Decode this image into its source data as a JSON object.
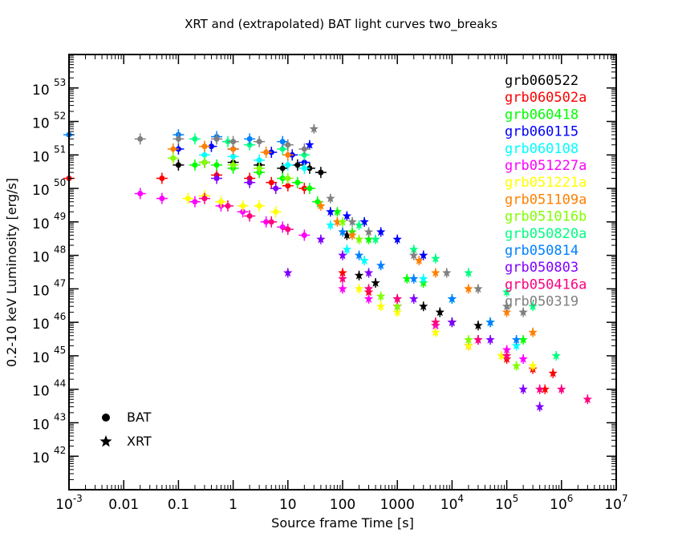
{
  "chart_data": {
    "type": "scatter",
    "title": "XRT and (extrapolated) BAT light curves two_breaks",
    "xlabel": "Source frame Time [s]",
    "ylabel": "0.2-10 keV Luminosity [erg/s]",
    "xscale": "log",
    "yscale": "log",
    "xlim": [
      0.001,
      10000000
    ],
    "ylim": [
      1e+41,
      1e+54
    ],
    "x_ticks": [
      {
        "value": 0.001,
        "base": "10",
        "exp": "-3"
      },
      {
        "value": 0.01,
        "base": "0.01",
        "exp": ""
      },
      {
        "value": 0.1,
        "base": "0.1",
        "exp": ""
      },
      {
        "value": 1,
        "base": "1",
        "exp": ""
      },
      {
        "value": 10,
        "base": "10",
        "exp": ""
      },
      {
        "value": 100,
        "base": "100",
        "exp": ""
      },
      {
        "value": 1000,
        "base": "1000",
        "exp": ""
      },
      {
        "value": 10000,
        "base": "10",
        "exp": "4"
      },
      {
        "value": 100000,
        "base": "10",
        "exp": "5"
      },
      {
        "value": 1000000,
        "base": "10",
        "exp": "6"
      },
      {
        "value": 10000000,
        "base": "10",
        "exp": "7"
      }
    ],
    "y_ticks": [
      {
        "value": 42,
        "base": "10",
        "exp": "42"
      },
      {
        "value": 43,
        "base": "10",
        "exp": "43"
      },
      {
        "value": 44,
        "base": "10",
        "exp": "44"
      },
      {
        "value": 45,
        "base": "10",
        "exp": "45"
      },
      {
        "value": 46,
        "base": "10",
        "exp": "46"
      },
      {
        "value": 47,
        "base": "10",
        "exp": "47"
      },
      {
        "value": 48,
        "base": "10",
        "exp": "48"
      },
      {
        "value": 49,
        "base": "10",
        "exp": "49"
      },
      {
        "value": 50,
        "base": "10",
        "exp": "50"
      },
      {
        "value": 51,
        "base": "10",
        "exp": "51"
      },
      {
        "value": 52,
        "base": "10",
        "exp": "52"
      },
      {
        "value": 53,
        "base": "10",
        "exp": "53"
      }
    ],
    "legend_placement": "top-right",
    "symbols": [
      {
        "marker": "circle",
        "label": "BAT"
      },
      {
        "marker": "star",
        "label": "XRT"
      }
    ],
    "series": [
      {
        "name": "grb060522",
        "color": "#000000",
        "bat": [
          [
            0.1,
            5e+50
          ],
          [
            0.3,
            6e+50
          ],
          [
            1,
            6e+50
          ],
          [
            3,
            5e+50
          ],
          [
            8,
            4e+50
          ],
          [
            15,
            5e+50
          ],
          [
            25,
            4e+50
          ],
          [
            40,
            3e+50
          ]
        ],
        "xrt": [
          [
            120,
            4e+48
          ],
          [
            200,
            2.5e+47
          ],
          [
            400,
            1.5e+47
          ],
          [
            1000,
            5e+46
          ],
          [
            3000,
            3e+46
          ],
          [
            6000,
            2e+46
          ],
          [
            10000,
            1e+46
          ],
          [
            30000,
            8e+45
          ]
        ]
      },
      {
        "name": "grb060502a",
        "color": "#ff0000",
        "bat": [
          [
            0.001,
            2e+50
          ],
          [
            0.05,
            2e+50
          ],
          [
            0.5,
            2.5e+50
          ],
          [
            2,
            2e+50
          ],
          [
            5,
            1.5e+50
          ],
          [
            10,
            1.2e+50
          ],
          [
            20,
            1e+50
          ]
        ],
        "xrt": [
          [
            100,
            3e+47
          ],
          [
            300,
            8e+46
          ],
          [
            1000,
            3e+46
          ],
          [
            5000,
            8e+45
          ],
          [
            20000,
            2e+45
          ],
          [
            100000,
            8e+44
          ],
          [
            300000,
            4e+44
          ],
          [
            500000,
            1e+44
          ],
          [
            700000,
            3e+44
          ]
        ]
      },
      {
        "name": "grb060418",
        "color": "#00ff00",
        "bat": [
          [
            0.2,
            5e+50
          ],
          [
            0.5,
            5e+50
          ],
          [
            1,
            4e+50
          ],
          [
            3,
            3e+50
          ],
          [
            8,
            2e+50
          ],
          [
            15,
            1.5e+50
          ],
          [
            25,
            1e+50
          ],
          [
            35,
            4e+49
          ]
        ],
        "xrt": [
          [
            80,
            2e+49
          ],
          [
            150,
            5e+48
          ],
          [
            300,
            3e+48
          ],
          [
            1500,
            2e+47
          ],
          [
            3000,
            1.5e+47
          ],
          [
            10000,
            5e+46
          ],
          [
            50000,
            1e+46
          ],
          [
            200000,
            3e+45
          ]
        ]
      },
      {
        "name": "grb060115",
        "color": "#0000ff",
        "bat": [
          [
            0.1,
            1.5e+51
          ],
          [
            0.4,
            1.8e+51
          ],
          [
            1,
            1.5e+51
          ],
          [
            5,
            1.2e+51
          ],
          [
            12,
            1e+51
          ],
          [
            20,
            6e+50
          ]
        ],
        "xrt": [
          [
            25,
            2e+51
          ],
          [
            60,
            2e+49
          ],
          [
            120,
            1.5e+49
          ],
          [
            250,
            1e+49
          ],
          [
            500,
            5e+48
          ],
          [
            1000,
            3e+48
          ],
          [
            3000,
            1e+48
          ]
        ]
      },
      {
        "name": "grb060108",
        "color": "#00ffff",
        "bat": [
          [
            0.3,
            1e+51
          ],
          [
            1,
            9e+50
          ],
          [
            3,
            7e+50
          ],
          [
            10,
            5e+50
          ],
          [
            20,
            4e+50
          ]
        ],
        "xrt": [
          [
            60,
            8e+48
          ],
          [
            120,
            1.5e+48
          ],
          [
            250,
            7e+47
          ],
          [
            3000,
            2e+47
          ],
          [
            10000,
            5e+46
          ],
          [
            50000,
            1e+46
          ],
          [
            150000,
            2e+45
          ]
        ]
      },
      {
        "name": "grb051227a",
        "color": "#ff00ff",
        "bat": [
          [
            0.02,
            7e+49
          ],
          [
            0.05,
            5e+49
          ],
          [
            0.2,
            4e+49
          ],
          [
            0.6,
            3e+49
          ],
          [
            1.5,
            2e+49
          ],
          [
            4,
            1e+49
          ],
          [
            8,
            7e+48
          ],
          [
            20,
            4e+48
          ]
        ],
        "xrt": [
          [
            100,
            1e+47
          ],
          [
            300,
            5e+46
          ],
          [
            1000,
            3e+46
          ],
          [
            5000,
            8e+45
          ],
          [
            30000,
            3e+45
          ],
          [
            100000,
            1.5e+45
          ],
          [
            200000,
            8e+44
          ]
        ]
      },
      {
        "name": "grb051221a",
        "color": "#ffff00",
        "bat": [
          [
            0.15,
            5e+49
          ],
          [
            0.3,
            6e+49
          ],
          [
            0.6,
            4e+49
          ],
          [
            1.5,
            3e+49
          ],
          [
            3,
            3e+49
          ],
          [
            6,
            2e+49
          ]
        ],
        "xrt": [
          [
            200,
            1e+47
          ],
          [
            500,
            3e+46
          ],
          [
            1000,
            2e+46
          ],
          [
            5000,
            5e+45
          ],
          [
            20000,
            2e+45
          ],
          [
            80000,
            1e+45
          ],
          [
            300000,
            5e+44
          ]
        ]
      },
      {
        "name": "grb051109a",
        "color": "#ff8000",
        "bat": [
          [
            0.08,
            1.5e+51
          ],
          [
            0.3,
            1.8e+51
          ],
          [
            1,
            1.5e+51
          ],
          [
            4,
            1.2e+51
          ],
          [
            10,
            1e+51
          ]
        ],
        "xrt": [
          [
            40,
            3e+49
          ],
          [
            80,
            1e+49
          ],
          [
            150,
            4e+48
          ],
          [
            2500,
            7e+47
          ],
          [
            5000,
            3e+47
          ],
          [
            20000,
            1e+47
          ],
          [
            100000,
            2e+46
          ],
          [
            300000,
            5e+45
          ]
        ]
      },
      {
        "name": "grb051016b",
        "color": "#80ff00",
        "bat": [
          [
            0.08,
            8e+50
          ],
          [
            0.3,
            6e+50
          ],
          [
            1,
            5e+50
          ],
          [
            3,
            4e+50
          ],
          [
            10,
            2e+50
          ]
        ],
        "xrt": [
          [
            100,
            1e+49
          ],
          [
            200,
            3e+48
          ],
          [
            500,
            6e+46
          ],
          [
            1000,
            3e+46
          ],
          [
            5000,
            1e+46
          ],
          [
            20000,
            3e+45
          ],
          [
            100000,
            1e+45
          ],
          [
            150000,
            5e+44
          ]
        ]
      },
      {
        "name": "grb050820a",
        "color": "#00ff80",
        "bat": [
          [
            0.2,
            3e+51
          ],
          [
            0.8,
            2.5e+51
          ],
          [
            2,
            2e+51
          ],
          [
            8,
            1.5e+51
          ],
          [
            20,
            1e+51
          ]
        ],
        "xrt": [
          [
            200,
            8e+48
          ],
          [
            400,
            3e+48
          ],
          [
            2000,
            1.5e+48
          ],
          [
            5000,
            8e+47
          ],
          [
            20000,
            3e+47
          ],
          [
            100000,
            8e+46
          ],
          [
            300000,
            3e+46
          ],
          [
            800000,
            1e+45
          ]
        ]
      },
      {
        "name": "grb050814",
        "color": "#0080ff",
        "bat": [
          [
            0.001,
            4e+51
          ],
          [
            0.1,
            4e+51
          ],
          [
            0.5,
            3.5e+51
          ],
          [
            2,
            3e+51
          ],
          [
            8,
            2.5e+51
          ]
        ],
        "xrt": [
          [
            100,
            5e+48
          ],
          [
            200,
            1e+48
          ],
          [
            500,
            5e+47
          ],
          [
            2000,
            2e+47
          ],
          [
            10000,
            5e+46
          ],
          [
            50000,
            1e+46
          ],
          [
            150000,
            3e+45
          ]
        ]
      },
      {
        "name": "grb050803",
        "color": "#8000ff",
        "bat": [
          [
            0.5,
            2e+50
          ],
          [
            2,
            1.5e+50
          ],
          [
            6,
            1e+50
          ]
        ],
        "xrt": [
          [
            10,
            3e+47
          ],
          [
            40,
            3e+48
          ],
          [
            100,
            1e+48
          ],
          [
            300,
            3e+47
          ],
          [
            2000,
            5e+46
          ],
          [
            10000,
            1e+46
          ],
          [
            50000,
            3e+45
          ],
          [
            200000,
            1e+44
          ],
          [
            400000,
            3e+43
          ]
        ]
      },
      {
        "name": "grb050416a",
        "color": "#ff0080",
        "bat": [
          [
            0.3,
            5e+49
          ],
          [
            0.8,
            3e+49
          ],
          [
            2,
            1.5e+49
          ],
          [
            5,
            1e+49
          ],
          [
            10,
            6e+48
          ]
        ],
        "xrt": [
          [
            100,
            2e+47
          ],
          [
            300,
            1e+47
          ],
          [
            1000,
            5e+46
          ],
          [
            5000,
            1e+46
          ],
          [
            30000,
            3e+45
          ],
          [
            100000,
            1e+45
          ],
          [
            400000,
            1e+44
          ],
          [
            1000000,
            1e+44
          ],
          [
            3000000,
            5e+43
          ]
        ]
      },
      {
        "name": "grb050319",
        "color": "#808080",
        "bat": [
          [
            0.02,
            3e+51
          ],
          [
            0.1,
            3e+51
          ],
          [
            0.5,
            3e+51
          ],
          [
            1,
            2.5e+51
          ],
          [
            3,
            2.5e+51
          ],
          [
            10,
            2e+51
          ],
          [
            20,
            1.5e+51
          ]
        ],
        "xrt": [
          [
            30,
            6e+51
          ],
          [
            60,
            5e+49
          ],
          [
            150,
            1e+49
          ],
          [
            300,
            5e+48
          ],
          [
            2000,
            1e+48
          ],
          [
            8000,
            3e+47
          ],
          [
            30000,
            1e+47
          ],
          [
            100000,
            3e+46
          ],
          [
            200000,
            2e+46
          ]
        ]
      }
    ]
  }
}
